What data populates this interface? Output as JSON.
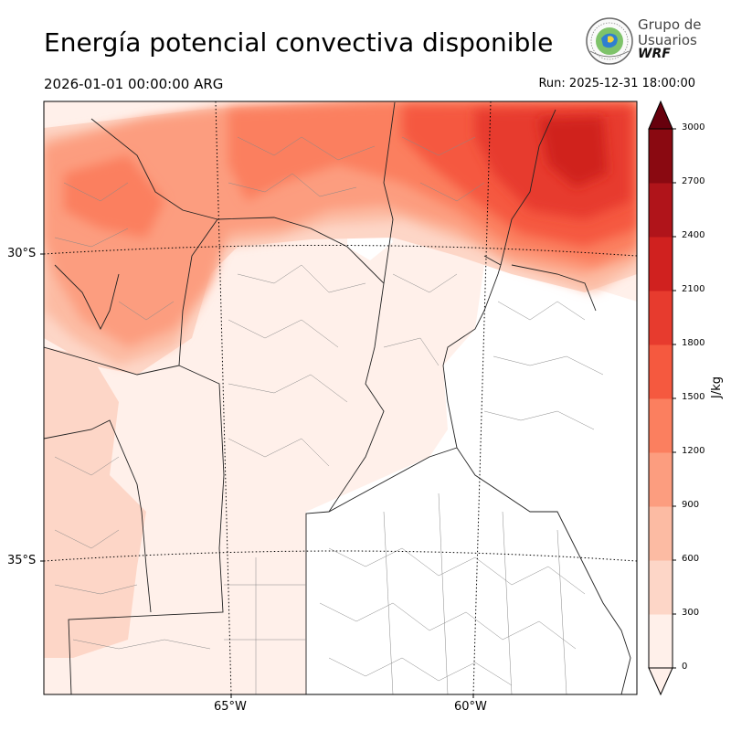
{
  "header": {
    "title": "Energía potencial convectiva disponible",
    "valid_time": "2026-01-01 00:00:00 ARG",
    "run_time": "Run: 2025-12-31 18:00:00"
  },
  "logo": {
    "line1": "Grupo de",
    "line2": "Usuarios",
    "line3": "WRF"
  },
  "map": {
    "lat_labels": [
      "30°S",
      "35°S"
    ],
    "lon_labels": [
      "65°W",
      "60°W"
    ]
  },
  "colorbar": {
    "unit": "J/kg",
    "levels": [
      0,
      300,
      600,
      900,
      1200,
      1500,
      1800,
      2100,
      2400,
      2700,
      3000
    ],
    "tick_labels": [
      "0",
      "300",
      "600",
      "900",
      "1200",
      "1500",
      "1800",
      "2100",
      "2400",
      "2700",
      "3000"
    ],
    "colors": [
      "#fff0ea",
      "#fdd6c7",
      "#fcbba3",
      "#fc9d7f",
      "#fb7f5f",
      "#f5593f",
      "#e73b2e",
      "#d0211f",
      "#b0141a",
      "#8a0911"
    ],
    "extend_color": "#67000d"
  }
}
